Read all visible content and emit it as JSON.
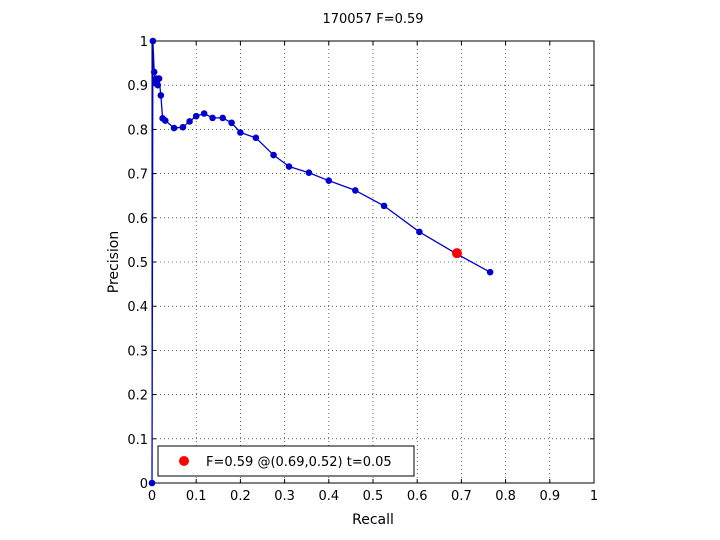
{
  "chart_data": {
    "type": "line",
    "title": "170057 F=0.59",
    "xlabel": "Recall",
    "ylabel": "Precision",
    "xlim": [
      0,
      1
    ],
    "ylim": [
      0,
      1
    ],
    "grid": true,
    "x_ticks": [
      "0",
      "0.1",
      "0.2",
      "0.3",
      "0.4",
      "0.5",
      "0.6",
      "0.7",
      "0.8",
      "0.9",
      "1"
    ],
    "y_ticks": [
      "0",
      "0.1",
      "0.2",
      "0.3",
      "0.4",
      "0.5",
      "0.6",
      "0.7",
      "0.8",
      "0.9",
      "1"
    ],
    "series": [
      {
        "color": "#0000cc",
        "x": [
          0.0,
          0.002,
          0.005,
          0.007,
          0.01,
          0.013,
          0.016,
          0.02,
          0.024,
          0.03,
          0.05,
          0.07,
          0.085,
          0.1,
          0.118,
          0.137,
          0.16,
          0.18,
          0.2,
          0.235,
          0.275,
          0.31,
          0.355,
          0.4,
          0.46,
          0.525,
          0.605,
          0.69,
          0.765
        ],
        "y": [
          0.0,
          1.0,
          0.93,
          0.905,
          0.915,
          0.9,
          0.915,
          0.877,
          0.825,
          0.82,
          0.803,
          0.805,
          0.818,
          0.83,
          0.836,
          0.826,
          0.826,
          0.815,
          0.793,
          0.781,
          0.742,
          0.716,
          0.702,
          0.684,
          0.662,
          0.627,
          0.568,
          0.518,
          0.477
        ]
      }
    ],
    "highlight_point": {
      "x": 0.69,
      "y": 0.52,
      "color": "#ff0000"
    },
    "legend": {
      "position": "bottom-left",
      "label": "F=0.59 @(0.69,0.52) t=0.05"
    }
  }
}
